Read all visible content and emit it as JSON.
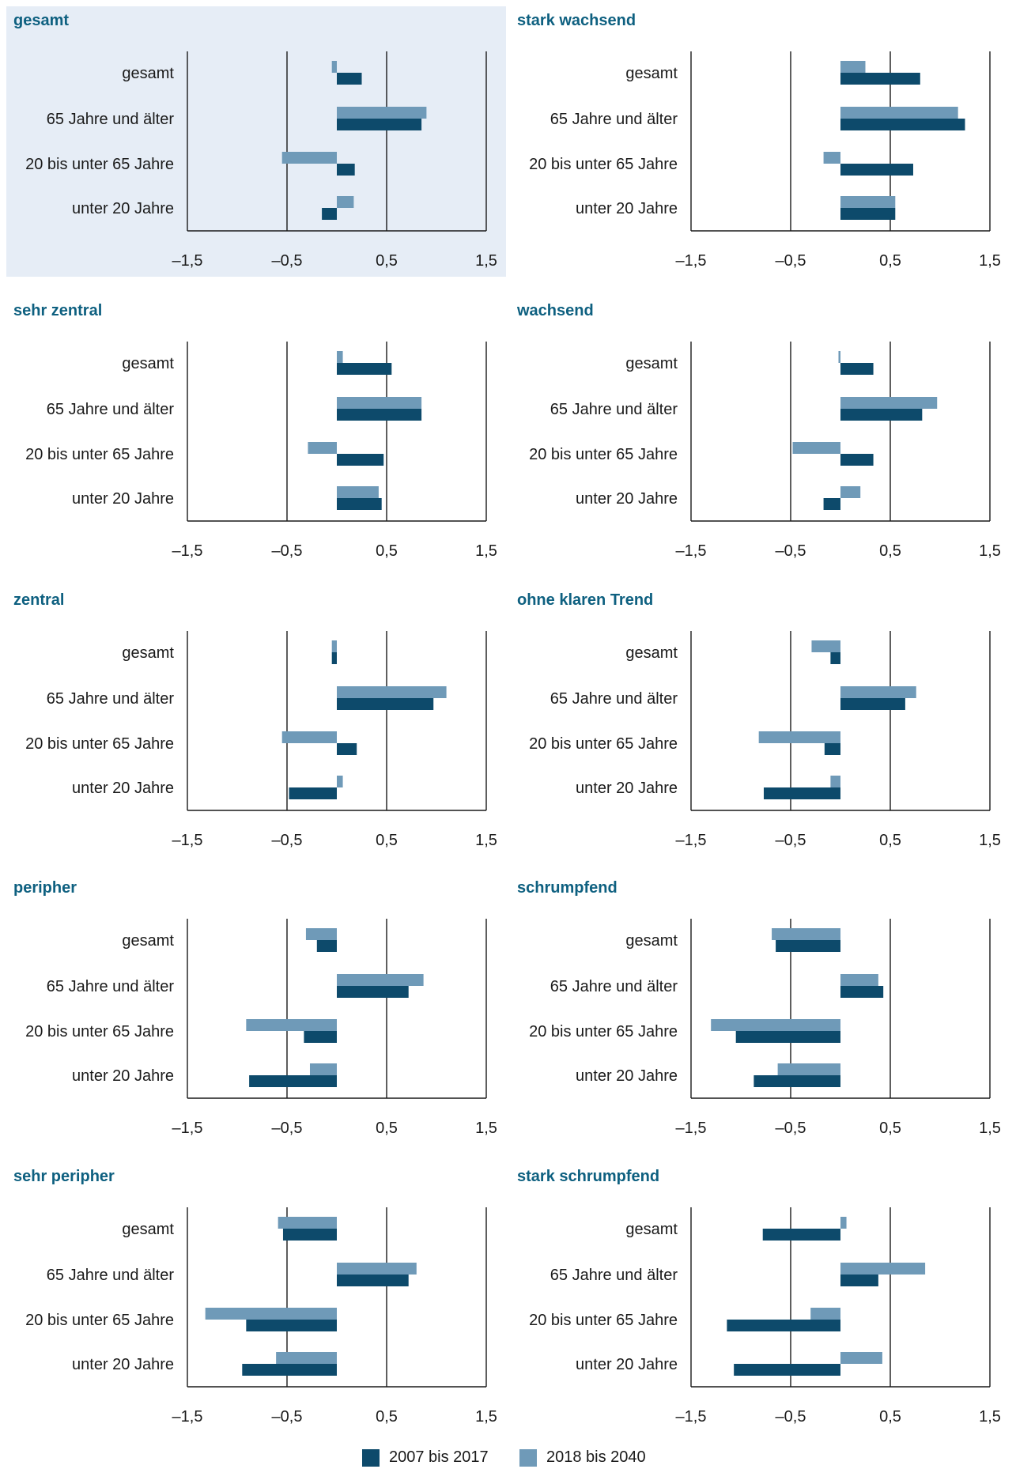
{
  "colors": {
    "series_2007_2017": "#0d4a6b",
    "series_2018_2040": "#6f9ab8",
    "title": "#0e6080",
    "highlight_bg": "#e6edf6",
    "axis": "#1a1a1a",
    "text": "#1a1a1a"
  },
  "legend": {
    "label_2007_2017": "2007 bis 2017",
    "label_2018_2040": "2018 bis 2040",
    "placement": "bottom-center"
  },
  "chart_data": [
    {
      "type": "bar",
      "orientation": "horizontal",
      "title": "gesamt",
      "highlighted": true,
      "categories": [
        "gesamt",
        "65 Jahre und älter",
        "20 bis unter 65 Jahre",
        "unter 20 Jahre"
      ],
      "series": [
        {
          "name": "2007 bis 2017",
          "values": [
            0.25,
            0.85,
            0.18,
            -0.15
          ]
        },
        {
          "name": "2018 bis 2040",
          "values": [
            -0.05,
            0.9,
            -0.55,
            0.17
          ]
        }
      ],
      "xticks": [
        "–1,5",
        "–0,5",
        "0,5",
        "1,5"
      ],
      "xlim": [
        -1.5,
        1.5
      ],
      "grid": true
    },
    {
      "type": "bar",
      "orientation": "horizontal",
      "title": "stark wachsend",
      "highlighted": false,
      "categories": [
        "gesamt",
        "65 Jahre und älter",
        "20 bis unter 65 Jahre",
        "unter 20 Jahre"
      ],
      "series": [
        {
          "name": "2007 bis 2017",
          "values": [
            0.8,
            1.25,
            0.73,
            0.55
          ]
        },
        {
          "name": "2018 bis 2040",
          "values": [
            0.25,
            1.18,
            -0.17,
            0.55
          ]
        }
      ],
      "xticks": [
        "–1,5",
        "–0,5",
        "0,5",
        "1,5"
      ],
      "xlim": [
        -1.5,
        1.5
      ],
      "grid": true
    },
    {
      "type": "bar",
      "orientation": "horizontal",
      "title": "sehr zentral",
      "highlighted": false,
      "categories": [
        "gesamt",
        "65 Jahre und älter",
        "20 bis unter 65 Jahre",
        "unter 20 Jahre"
      ],
      "series": [
        {
          "name": "2007 bis 2017",
          "values": [
            0.55,
            0.85,
            0.47,
            0.45
          ]
        },
        {
          "name": "2018 bis 2040",
          "values": [
            0.06,
            0.85,
            -0.29,
            0.42
          ]
        }
      ],
      "xticks": [
        "–1,5",
        "–0,5",
        "0,5",
        "1,5"
      ],
      "xlim": [
        -1.5,
        1.5
      ],
      "grid": true
    },
    {
      "type": "bar",
      "orientation": "horizontal",
      "title": "wachsend",
      "highlighted": false,
      "categories": [
        "gesamt",
        "65 Jahre und älter",
        "20 bis unter 65 Jahre",
        "unter 20 Jahre"
      ],
      "series": [
        {
          "name": "2007 bis 2017",
          "values": [
            0.33,
            0.82,
            0.33,
            -0.17
          ]
        },
        {
          "name": "2018 bis 2040",
          "values": [
            -0.02,
            0.97,
            -0.48,
            0.2
          ]
        }
      ],
      "xticks": [
        "–1,5",
        "–0,5",
        "0,5",
        "1,5"
      ],
      "xlim": [
        -1.5,
        1.5
      ],
      "grid": true
    },
    {
      "type": "bar",
      "orientation": "horizontal",
      "title": "zentral",
      "highlighted": false,
      "categories": [
        "gesamt",
        "65 Jahre und älter",
        "20 bis unter 65 Jahre",
        "unter 20 Jahre"
      ],
      "series": [
        {
          "name": "2007 bis 2017",
          "values": [
            -0.05,
            0.97,
            0.2,
            -0.48
          ]
        },
        {
          "name": "2018 bis 2040",
          "values": [
            -0.05,
            1.1,
            -0.55,
            0.06
          ]
        }
      ],
      "xticks": [
        "–1,5",
        "–0,5",
        "0,5",
        "1,5"
      ],
      "xlim": [
        -1.5,
        1.5
      ],
      "grid": true
    },
    {
      "type": "bar",
      "orientation": "horizontal",
      "title": "ohne klaren Trend",
      "highlighted": false,
      "categories": [
        "gesamt",
        "65 Jahre und älter",
        "20 bis unter 65 Jahre",
        "unter 20 Jahre"
      ],
      "series": [
        {
          "name": "2007 bis 2017",
          "values": [
            -0.1,
            0.65,
            -0.16,
            -0.77
          ]
        },
        {
          "name": "2018 bis 2040",
          "values": [
            -0.29,
            0.76,
            -0.82,
            -0.1
          ]
        }
      ],
      "xticks": [
        "–1,5",
        "–0,5",
        "0,5",
        "1,5"
      ],
      "xlim": [
        -1.5,
        1.5
      ],
      "grid": true
    },
    {
      "type": "bar",
      "orientation": "horizontal",
      "title": "peripher",
      "highlighted": false,
      "categories": [
        "gesamt",
        "65 Jahre und älter",
        "20 bis unter 65 Jahre",
        "unter 20 Jahre"
      ],
      "series": [
        {
          "name": "2007 bis 2017",
          "values": [
            -0.2,
            0.72,
            -0.33,
            -0.88
          ]
        },
        {
          "name": "2018 bis 2040",
          "values": [
            -0.31,
            0.87,
            -0.91,
            -0.27
          ]
        }
      ],
      "xticks": [
        "–1,5",
        "–0,5",
        "0,5",
        "1,5"
      ],
      "xlim": [
        -1.5,
        1.5
      ],
      "grid": true
    },
    {
      "type": "bar",
      "orientation": "horizontal",
      "title": "schrumpfend",
      "highlighted": false,
      "categories": [
        "gesamt",
        "65 Jahre und älter",
        "20 bis unter 65 Jahre",
        "unter 20 Jahre"
      ],
      "series": [
        {
          "name": "2007 bis 2017",
          "values": [
            -0.65,
            0.43,
            -1.05,
            -0.87
          ]
        },
        {
          "name": "2018 bis 2040",
          "values": [
            -0.69,
            0.38,
            -1.3,
            -0.63
          ]
        }
      ],
      "xticks": [
        "–1,5",
        "–0,5",
        "0,5",
        "1,5"
      ],
      "xlim": [
        -1.5,
        1.5
      ],
      "grid": true
    },
    {
      "type": "bar",
      "orientation": "horizontal",
      "title": "sehr peripher",
      "highlighted": false,
      "categories": [
        "gesamt",
        "65 Jahre und älter",
        "20 bis unter 65 Jahre",
        "unter 20 Jahre"
      ],
      "series": [
        {
          "name": "2007 bis 2017",
          "values": [
            -0.54,
            0.72,
            -0.91,
            -0.95
          ]
        },
        {
          "name": "2018 bis 2040",
          "values": [
            -0.59,
            0.8,
            -1.32,
            -0.61
          ]
        }
      ],
      "xticks": [
        "–1,5",
        "–0,5",
        "0,5",
        "1,5"
      ],
      "xlim": [
        -1.5,
        1.5
      ],
      "grid": true
    },
    {
      "type": "bar",
      "orientation": "horizontal",
      "title": "stark schrumpfend",
      "highlighted": false,
      "categories": [
        "gesamt",
        "65 Jahre und älter",
        "20 bis unter 65 Jahre",
        "unter 20 Jahre"
      ],
      "series": [
        {
          "name": "2007 bis 2017",
          "values": [
            -0.78,
            0.38,
            -1.14,
            -1.07
          ]
        },
        {
          "name": "2018 bis 2040",
          "values": [
            0.06,
            0.85,
            -0.3,
            0.42
          ]
        }
      ],
      "xticks": [
        "–1,5",
        "–0,5",
        "0,5",
        "1,5"
      ],
      "xlim": [
        -1.5,
        1.5
      ],
      "grid": true
    }
  ]
}
